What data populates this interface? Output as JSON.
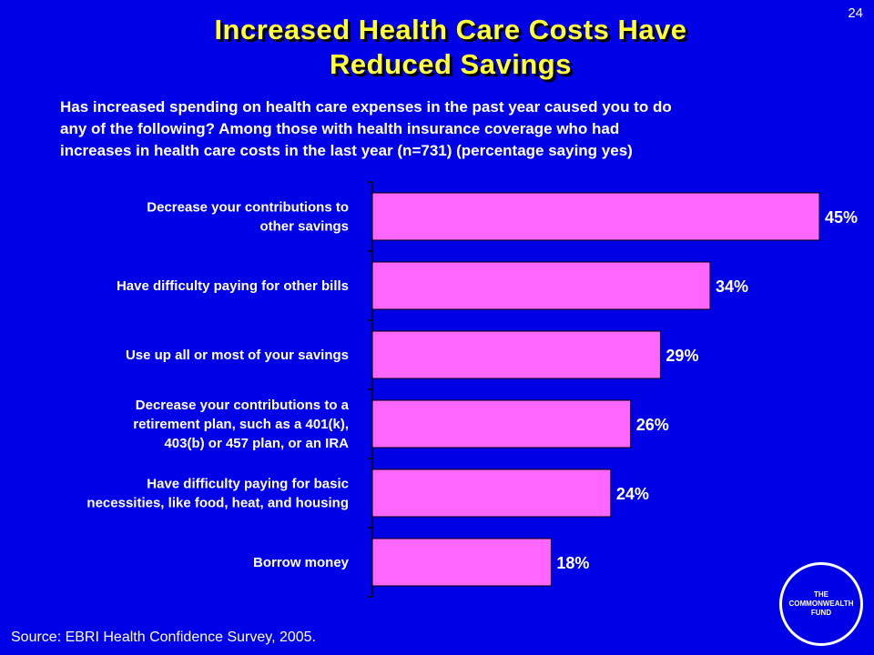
{
  "page": {
    "slide_number": "24",
    "title_line1": "Increased Health Care Costs Have",
    "title_line2": "Reduced Savings",
    "subtitle_line1": "Has increased spending on health care expenses in the past year caused you to do",
    "subtitle_line2": "any of the following?  Among those with health insurance coverage who had",
    "subtitle_line3": "increases in health care costs in the last year (n=731) (percentage saying yes)",
    "source": "Source: EBRI Health Confidence Survey, 2005.",
    "logo_line1": "THE",
    "logo_line2": "COMMONWEALTH",
    "logo_line3": "FUND"
  },
  "colors": {
    "background": "#0000e6",
    "bar_fill": "#ff66ff",
    "title": "#ffff33",
    "text": "#ffffff"
  },
  "chart_data": {
    "type": "bar",
    "orientation": "horizontal",
    "categories": [
      [
        "Decrease your contributions to",
        "other savings"
      ],
      [
        "Have difficulty paying for other bills"
      ],
      [
        "Use up all or most of your savings"
      ],
      [
        "Decrease your contributions to a",
        "retirement plan, such as a 401(k),",
        "403(b) or 457 plan, or an IRA"
      ],
      [
        "Have difficulty paying for basic",
        "necessities, like food, heat, and housing"
      ],
      [
        "Borrow money"
      ]
    ],
    "values": [
      45,
      34,
      29,
      26,
      24,
      18
    ],
    "data_labels": [
      "45%",
      "34%",
      "29%",
      "26%",
      "24%",
      "18%"
    ],
    "xlim": [
      0,
      45
    ],
    "grid": false,
    "legend": "none"
  }
}
